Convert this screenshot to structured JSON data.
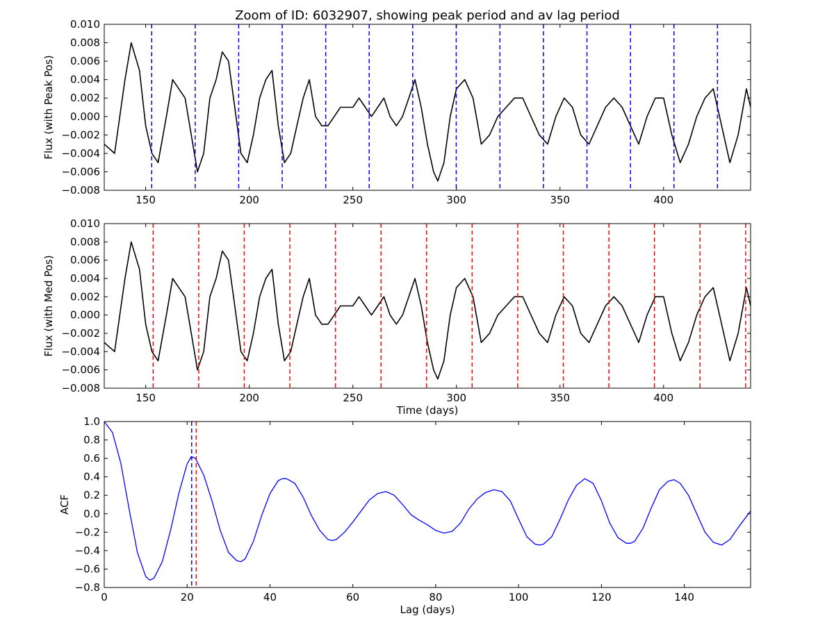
{
  "title": "Zoom of ID: 6032907, showing peak period and av lag period",
  "chart_data": [
    {
      "type": "line",
      "ylabel": "Flux (with Peak Pos)",
      "xlabel": "",
      "xlim": [
        130,
        442
      ],
      "ylim": [
        -0.008,
        0.01
      ],
      "xticks": [
        150,
        200,
        250,
        300,
        350,
        400
      ],
      "yticks": [
        -0.008,
        -0.006,
        -0.004,
        -0.002,
        0.0,
        0.002,
        0.004,
        0.006,
        0.008,
        0.01
      ],
      "ytick_labels": [
        "−0.008",
        "−0.006",
        "−0.004",
        "−0.002",
        "0.000",
        "0.002",
        "0.004",
        "0.006",
        "0.008",
        "0.010"
      ],
      "series": [
        {
          "color": "#000000",
          "x": [
            130,
            135,
            140,
            143,
            147,
            150,
            153,
            156,
            160,
            163,
            166,
            169,
            172,
            175,
            178,
            181,
            184,
            187,
            190,
            193,
            196,
            199,
            202,
            205,
            208,
            211,
            214,
            217,
            220,
            223,
            226,
            229,
            232,
            235,
            238,
            241,
            244,
            247,
            250,
            253,
            256,
            259,
            262,
            265,
            268,
            271,
            274,
            277,
            280,
            283,
            286,
            289,
            291,
            294,
            297,
            300,
            304,
            308,
            312,
            316,
            320,
            324,
            328,
            332,
            336,
            340,
            344,
            348,
            352,
            356,
            360,
            364,
            368,
            372,
            376,
            380,
            384,
            388,
            392,
            396,
            400,
            404,
            408,
            412,
            416,
            420,
            424,
            428,
            432,
            436,
            440,
            442
          ],
          "y": [
            -0.003,
            -0.004,
            0.004,
            0.008,
            0.005,
            -0.001,
            -0.004,
            -0.005,
            0.0,
            0.004,
            0.003,
            0.002,
            -0.002,
            -0.006,
            -0.004,
            0.002,
            0.004,
            0.007,
            0.006,
            0.001,
            -0.004,
            -0.005,
            -0.002,
            0.002,
            0.004,
            0.005,
            -0.001,
            -0.005,
            -0.004,
            -0.001,
            0.002,
            0.004,
            0.0,
            -0.001,
            -0.001,
            0.0,
            0.001,
            0.001,
            0.001,
            0.002,
            0.001,
            0.0,
            0.001,
            0.002,
            0.0,
            -0.001,
            0.0,
            0.002,
            0.004,
            0.001,
            -0.003,
            -0.006,
            -0.007,
            -0.005,
            0.0,
            0.003,
            0.004,
            0.002,
            -0.003,
            -0.002,
            0.0,
            0.001,
            0.002,
            0.002,
            0.0,
            -0.002,
            -0.003,
            0.0,
            0.002,
            0.001,
            -0.002,
            -0.003,
            -0.001,
            0.001,
            0.002,
            0.001,
            -0.001,
            -0.003,
            0.0,
            0.002,
            0.002,
            -0.002,
            -0.005,
            -0.003,
            0.0,
            0.002,
            0.003,
            -0.001,
            -0.005,
            -0.002,
            0.003,
            0.001
          ]
        }
      ],
      "vlines": {
        "color": "#0000ff",
        "x": [
          152.9,
          173.9,
          194.9,
          215.9,
          236.9,
          257.9,
          278.9,
          299.9,
          321.0,
          342.0,
          363.0,
          384.0,
          405.0,
          426.0
        ]
      }
    },
    {
      "type": "line",
      "ylabel": "Flux (with Med Pos)",
      "xlabel": "Time (days)",
      "xlim": [
        130,
        442
      ],
      "ylim": [
        -0.008,
        0.01
      ],
      "xticks": [
        150,
        200,
        250,
        300,
        350,
        400
      ],
      "yticks": [
        -0.008,
        -0.006,
        -0.004,
        -0.002,
        0.0,
        0.002,
        0.004,
        0.006,
        0.008,
        0.01
      ],
      "ytick_labels": [
        "−0.008",
        "−0.006",
        "−0.004",
        "−0.002",
        "0.000",
        "0.002",
        "0.004",
        "0.006",
        "0.008",
        "0.010"
      ],
      "series": [
        {
          "color": "#000000",
          "x": [
            130,
            135,
            140,
            143,
            147,
            150,
            153,
            156,
            160,
            163,
            166,
            169,
            172,
            175,
            178,
            181,
            184,
            187,
            190,
            193,
            196,
            199,
            202,
            205,
            208,
            211,
            214,
            217,
            220,
            223,
            226,
            229,
            232,
            235,
            238,
            241,
            244,
            247,
            250,
            253,
            256,
            259,
            262,
            265,
            268,
            271,
            274,
            277,
            280,
            283,
            286,
            289,
            291,
            294,
            297,
            300,
            304,
            308,
            312,
            316,
            320,
            324,
            328,
            332,
            336,
            340,
            344,
            348,
            352,
            356,
            360,
            364,
            368,
            372,
            376,
            380,
            384,
            388,
            392,
            396,
            400,
            404,
            408,
            412,
            416,
            420,
            424,
            428,
            432,
            436,
            440,
            442
          ],
          "y": [
            -0.003,
            -0.004,
            0.004,
            0.008,
            0.005,
            -0.001,
            -0.004,
            -0.005,
            0.0,
            0.004,
            0.003,
            0.002,
            -0.002,
            -0.006,
            -0.004,
            0.002,
            0.004,
            0.007,
            0.006,
            0.001,
            -0.004,
            -0.005,
            -0.002,
            0.002,
            0.004,
            0.005,
            -0.001,
            -0.005,
            -0.004,
            -0.001,
            0.002,
            0.004,
            0.0,
            -0.001,
            -0.001,
            0.0,
            0.001,
            0.001,
            0.001,
            0.002,
            0.001,
            0.0,
            0.001,
            0.002,
            0.0,
            -0.001,
            0.0,
            0.002,
            0.004,
            0.001,
            -0.003,
            -0.006,
            -0.007,
            -0.005,
            0.0,
            0.003,
            0.004,
            0.002,
            -0.003,
            -0.002,
            0.0,
            0.001,
            0.002,
            0.002,
            0.0,
            -0.002,
            -0.003,
            0.0,
            0.002,
            0.001,
            -0.002,
            -0.003,
            -0.001,
            0.001,
            0.002,
            0.001,
            -0.001,
            -0.003,
            0.0,
            0.002,
            0.002,
            -0.002,
            -0.005,
            -0.003,
            0.0,
            0.002,
            0.003,
            -0.001,
            -0.005,
            -0.002,
            0.003,
            0.001
          ]
        }
      ],
      "vlines": {
        "color": "#ff0000",
        "x": [
          153.6,
          175.6,
          197.6,
          219.6,
          241.6,
          263.6,
          285.6,
          307.6,
          329.6,
          351.6,
          373.6,
          395.6,
          417.6,
          439.6
        ]
      }
    },
    {
      "type": "line",
      "ylabel": "ACF",
      "xlabel": "Lag (days)",
      "xlim": [
        0,
        156
      ],
      "ylim": [
        -0.8,
        1.0
      ],
      "xticks": [
        0,
        20,
        40,
        60,
        80,
        100,
        120,
        140
      ],
      "yticks": [
        -0.8,
        -0.6,
        -0.4,
        -0.2,
        0.0,
        0.2,
        0.4,
        0.6,
        0.8,
        1.0
      ],
      "ytick_labels": [
        "−0.8",
        "−0.6",
        "−0.4",
        "−0.2",
        "0.0",
        "0.2",
        "0.4",
        "0.6",
        "0.8",
        "1.0"
      ],
      "series": [
        {
          "color": "#0000ff",
          "x": [
            0,
            2,
            4,
            6,
            8,
            10,
            11,
            12,
            14,
            16,
            18,
            20,
            21,
            22,
            24,
            26,
            28,
            30,
            32,
            33,
            34,
            36,
            38,
            40,
            42,
            43,
            44,
            46,
            48,
            50,
            52,
            54,
            55,
            56,
            58,
            60,
            62,
            64,
            66,
            68,
            70,
            72,
            74,
            76,
            78,
            80,
            82,
            84,
            86,
            88,
            90,
            92,
            94,
            96,
            98,
            100,
            102,
            104,
            105,
            106,
            108,
            110,
            112,
            114,
            116,
            118,
            120,
            122,
            124,
            126,
            127,
            128,
            130,
            132,
            134,
            136,
            137.5,
            139,
            141,
            143,
            145,
            147,
            149,
            151,
            153,
            155,
            156
          ],
          "y": [
            1.0,
            0.88,
            0.55,
            0.05,
            -0.42,
            -0.68,
            -0.72,
            -0.7,
            -0.52,
            -0.18,
            0.22,
            0.54,
            0.62,
            0.6,
            0.42,
            0.14,
            -0.18,
            -0.42,
            -0.51,
            -0.52,
            -0.49,
            -0.3,
            -0.02,
            0.22,
            0.36,
            0.38,
            0.38,
            0.33,
            0.18,
            -0.02,
            -0.18,
            -0.28,
            -0.29,
            -0.28,
            -0.2,
            -0.09,
            0.03,
            0.15,
            0.22,
            0.24,
            0.2,
            0.1,
            -0.01,
            -0.07,
            -0.12,
            -0.18,
            -0.21,
            -0.19,
            -0.1,
            0.05,
            0.16,
            0.23,
            0.26,
            0.24,
            0.14,
            -0.06,
            -0.25,
            -0.33,
            -0.34,
            -0.33,
            -0.25,
            -0.06,
            0.15,
            0.31,
            0.38,
            0.33,
            0.14,
            -0.1,
            -0.26,
            -0.32,
            -0.32,
            -0.3,
            -0.16,
            0.06,
            0.26,
            0.35,
            0.37,
            0.33,
            0.2,
            0.0,
            -0.2,
            -0.31,
            -0.34,
            -0.28,
            -0.15,
            -0.03,
            0.03
          ]
        }
      ],
      "vlines_multi": [
        {
          "color": "#0000ff",
          "x": 21.1
        },
        {
          "color": "#ff0000",
          "x": 22.2
        }
      ]
    }
  ]
}
